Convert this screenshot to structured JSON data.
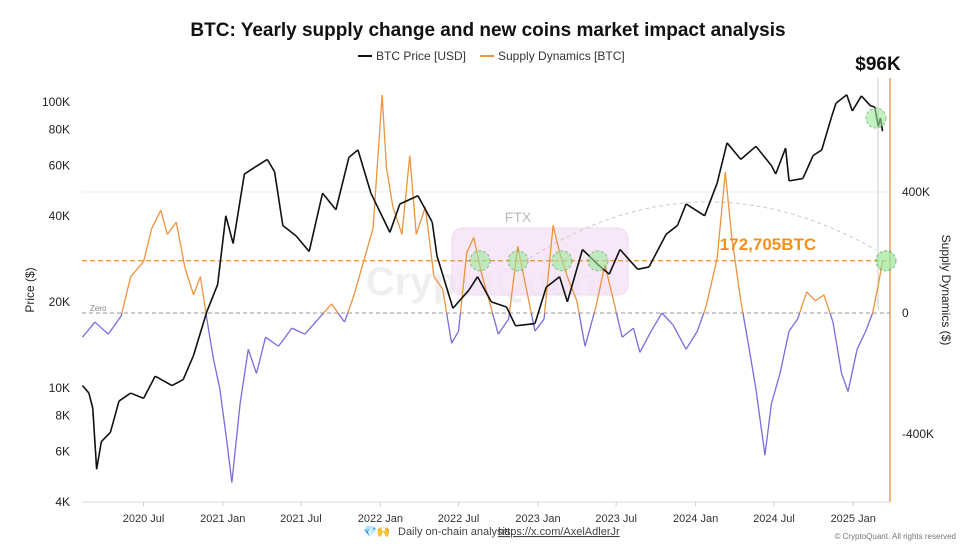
{
  "chart_data": {
    "type": "line",
    "title": "BTC: Yearly supply change and new coins market impact analysis",
    "legend": [
      {
        "name": "BTC Price [USD]",
        "color": "#111111"
      },
      {
        "name": "Supply Dynamics [BTC]",
        "color": "#f0923e"
      }
    ],
    "legend_placement": "top",
    "ylabel_left": "Price ($)",
    "ylabel_right": "Supply Dynamics ($)",
    "left_axis": {
      "scale": "log",
      "ticks": [
        {
          "v": 4000,
          "label": "4K"
        },
        {
          "v": 6000,
          "label": "6K"
        },
        {
          "v": 8000,
          "label": "8K"
        },
        {
          "v": 10000,
          "label": "10K"
        },
        {
          "v": 20000,
          "label": "20K"
        },
        {
          "v": 40000,
          "label": "40K"
        },
        {
          "v": 60000,
          "label": "60K"
        },
        {
          "v": 80000,
          "label": "80K"
        },
        {
          "v": 100000,
          "label": "100K"
        }
      ]
    },
    "right_axis": {
      "scale": "linear",
      "ticks": [
        {
          "v": 400000,
          "label": "400K"
        },
        {
          "v": 0,
          "label": "0"
        },
        {
          "v": -400000,
          "label": "-400K"
        }
      ]
    },
    "x_ticks": [
      {
        "d": "2020-07-01",
        "label": "2020 Jul"
      },
      {
        "d": "2021-01-01",
        "label": "2021 Jan"
      },
      {
        "d": "2021-07-01",
        "label": "2021 Jul"
      },
      {
        "d": "2022-01-01",
        "label": "2022 Jan"
      },
      {
        "d": "2022-07-01",
        "label": "2022 Jul"
      },
      {
        "d": "2023-01-01",
        "label": "2023 Jan"
      },
      {
        "d": "2023-07-01",
        "label": "2023 Jul"
      },
      {
        "d": "2024-01-01",
        "label": "2024 Jan"
      },
      {
        "d": "2024-07-01",
        "label": "2024 Jul"
      },
      {
        "d": "2025-01-01",
        "label": "2025 Jan"
      }
    ],
    "series": [
      {
        "name": "BTC Price [USD]",
        "axis": "left",
        "color": "#111111",
        "points": [
          [
            "2020-02-10",
            10200
          ],
          [
            "2020-02-25",
            9600
          ],
          [
            "2020-03-05",
            8500
          ],
          [
            "2020-03-14",
            5200
          ],
          [
            "2020-03-25",
            6500
          ],
          [
            "2020-04-15",
            7000
          ],
          [
            "2020-05-05",
            9000
          ],
          [
            "2020-06-01",
            9600
          ],
          [
            "2020-07-01",
            9200
          ],
          [
            "2020-07-28",
            11000
          ],
          [
            "2020-09-05",
            10200
          ],
          [
            "2020-10-01",
            10700
          ],
          [
            "2020-10-25",
            13000
          ],
          [
            "2020-11-25",
            18500
          ],
          [
            "2020-12-20",
            23000
          ],
          [
            "2021-01-08",
            40000
          ],
          [
            "2021-01-25",
            32000
          ],
          [
            "2021-02-20",
            56000
          ],
          [
            "2021-03-15",
            59000
          ],
          [
            "2021-04-14",
            63000
          ],
          [
            "2021-05-01",
            57000
          ],
          [
            "2021-05-20",
            37000
          ],
          [
            "2021-06-20",
            34000
          ],
          [
            "2021-07-20",
            30000
          ],
          [
            "2021-08-20",
            48000
          ],
          [
            "2021-09-20",
            42000
          ],
          [
            "2021-10-20",
            64000
          ],
          [
            "2021-11-10",
            68000
          ],
          [
            "2021-12-10",
            48000
          ],
          [
            "2022-01-23",
            35000
          ],
          [
            "2022-02-15",
            44000
          ],
          [
            "2022-03-29",
            47000
          ],
          [
            "2022-05-01",
            38000
          ],
          [
            "2022-05-12",
            29000
          ],
          [
            "2022-06-18",
            19000
          ],
          [
            "2022-07-25",
            22000
          ],
          [
            "2022-08-14",
            24500
          ],
          [
            "2022-09-15",
            20000
          ],
          [
            "2022-10-20",
            19200
          ],
          [
            "2022-11-10",
            16500
          ],
          [
            "2022-12-25",
            16800
          ],
          [
            "2023-01-20",
            22500
          ],
          [
            "2023-02-20",
            24500
          ],
          [
            "2023-03-10",
            20000
          ],
          [
            "2023-04-14",
            30500
          ],
          [
            "2023-05-20",
            27000
          ],
          [
            "2023-06-15",
            25000
          ],
          [
            "2023-07-10",
            30500
          ],
          [
            "2023-08-20",
            26000
          ],
          [
            "2023-09-15",
            26500
          ],
          [
            "2023-10-25",
            34500
          ],
          [
            "2023-11-20",
            37000
          ],
          [
            "2023-12-10",
            44000
          ],
          [
            "2024-01-22",
            40000
          ],
          [
            "2024-02-20",
            52000
          ],
          [
            "2024-03-14",
            72000
          ],
          [
            "2024-04-15",
            63000
          ],
          [
            "2024-05-20",
            70000
          ],
          [
            "2024-06-25",
            60000
          ],
          [
            "2024-07-05",
            56000
          ],
          [
            "2024-07-28",
            69000
          ],
          [
            "2024-08-05",
            53000
          ],
          [
            "2024-09-06",
            54000
          ],
          [
            "2024-09-30",
            65000
          ],
          [
            "2024-10-20",
            68000
          ],
          [
            "2024-11-12",
            89000
          ],
          [
            "2024-11-22",
            99000
          ],
          [
            "2024-12-17",
            106000
          ],
          [
            "2024-12-30",
            93000
          ],
          [
            "2025-01-20",
            105000
          ],
          [
            "2025-02-10",
            97000
          ],
          [
            "2025-02-20",
            96000
          ],
          [
            "2025-02-28",
            82000
          ],
          [
            "2025-03-05",
            88000
          ],
          [
            "2025-03-10",
            79000
          ]
        ]
      },
      {
        "name": "Supply Dynamics [BTC]",
        "axis": "right",
        "color_positive": "#f0923e",
        "color_negative": "#7b6be0",
        "points": [
          [
            "2020-02-10",
            -80000
          ],
          [
            "2020-03-10",
            -30000
          ],
          [
            "2020-04-10",
            -70000
          ],
          [
            "2020-05-10",
            -10000
          ],
          [
            "2020-06-01",
            120000
          ],
          [
            "2020-07-01",
            170000
          ],
          [
            "2020-07-20",
            280000
          ],
          [
            "2020-08-10",
            340000
          ],
          [
            "2020-08-25",
            260000
          ],
          [
            "2020-09-15",
            300000
          ],
          [
            "2020-10-05",
            150000
          ],
          [
            "2020-10-25",
            60000
          ],
          [
            "2020-11-10",
            120000
          ],
          [
            "2020-11-25",
            -20000
          ],
          [
            "2020-12-10",
            -150000
          ],
          [
            "2020-12-25",
            -250000
          ],
          [
            "2021-01-10",
            -420000
          ],
          [
            "2021-01-22",
            -560000
          ],
          [
            "2021-02-10",
            -300000
          ],
          [
            "2021-03-01",
            -120000
          ],
          [
            "2021-03-20",
            -200000
          ],
          [
            "2021-04-10",
            -80000
          ],
          [
            "2021-05-10",
            -110000
          ],
          [
            "2021-06-10",
            -50000
          ],
          [
            "2021-07-10",
            -70000
          ],
          [
            "2021-08-10",
            -20000
          ],
          [
            "2021-09-10",
            30000
          ],
          [
            "2021-10-10",
            -30000
          ],
          [
            "2021-11-01",
            60000
          ],
          [
            "2021-11-25",
            180000
          ],
          [
            "2021-12-15",
            280000
          ],
          [
            "2022-01-05",
            720000
          ],
          [
            "2022-01-15",
            480000
          ],
          [
            "2022-01-30",
            350000
          ],
          [
            "2022-02-20",
            260000
          ],
          [
            "2022-03-10",
            520000
          ],
          [
            "2022-03-25",
            260000
          ],
          [
            "2022-04-15",
            350000
          ],
          [
            "2022-05-05",
            120000
          ],
          [
            "2022-05-25",
            80000
          ],
          [
            "2022-06-15",
            -100000
          ],
          [
            "2022-07-01",
            -60000
          ],
          [
            "2022-07-20",
            200000
          ],
          [
            "2022-08-05",
            250000
          ],
          [
            "2022-08-25",
            120000
          ],
          [
            "2022-09-10",
            40000
          ],
          [
            "2022-10-01",
            -70000
          ],
          [
            "2022-10-25",
            -20000
          ],
          [
            "2022-11-15",
            220000
          ],
          [
            "2022-12-05",
            80000
          ],
          [
            "2022-12-25",
            -60000
          ],
          [
            "2023-01-15",
            -20000
          ],
          [
            "2023-02-05",
            290000
          ],
          [
            "2023-02-20",
            200000
          ],
          [
            "2023-03-10",
            120000
          ],
          [
            "2023-04-01",
            40000
          ],
          [
            "2023-04-20",
            -110000
          ],
          [
            "2023-05-15",
            20000
          ],
          [
            "2023-06-05",
            160000
          ],
          [
            "2023-06-25",
            40000
          ],
          [
            "2023-07-15",
            -80000
          ],
          [
            "2023-08-10",
            -50000
          ],
          [
            "2023-08-25",
            -130000
          ],
          [
            "2023-09-20",
            -60000
          ],
          [
            "2023-10-15",
            0
          ],
          [
            "2023-11-10",
            -40000
          ],
          [
            "2023-12-10",
            -120000
          ],
          [
            "2024-01-05",
            -60000
          ],
          [
            "2024-01-25",
            20000
          ],
          [
            "2024-02-20",
            180000
          ],
          [
            "2024-03-10",
            466000
          ],
          [
            "2024-03-25",
            250000
          ],
          [
            "2024-04-15",
            40000
          ],
          [
            "2024-05-01",
            -90000
          ],
          [
            "2024-05-20",
            -250000
          ],
          [
            "2024-06-10",
            -470000
          ],
          [
            "2024-06-25",
            -300000
          ],
          [
            "2024-07-15",
            -200000
          ],
          [
            "2024-08-05",
            -60000
          ],
          [
            "2024-08-25",
            -20000
          ],
          [
            "2024-09-15",
            70000
          ],
          [
            "2024-10-05",
            40000
          ],
          [
            "2024-10-25",
            60000
          ],
          [
            "2024-11-15",
            -30000
          ],
          [
            "2024-12-05",
            -200000
          ],
          [
            "2024-12-20",
            -260000
          ],
          [
            "2025-01-10",
            -120000
          ],
          [
            "2025-01-30",
            -60000
          ],
          [
            "2025-02-15",
            0
          ],
          [
            "2025-03-01",
            100000
          ],
          [
            "2025-03-10",
            172705
          ]
        ]
      }
    ],
    "annotations": {
      "price_callout": "$96K",
      "supply_callout": "172,705BTC",
      "supply_callout_value": 172705,
      "event_box": "FTX",
      "zero_label": "Zero",
      "watermark": "CryptoQuant"
    },
    "grid": false
  },
  "footer": {
    "text": "Daily on-chain analysis: ",
    "link": "https://x.com/AxelAdlerJr",
    "emoji": "💎🙌",
    "copyright": "© CryptoQuant. All rights reserved"
  }
}
